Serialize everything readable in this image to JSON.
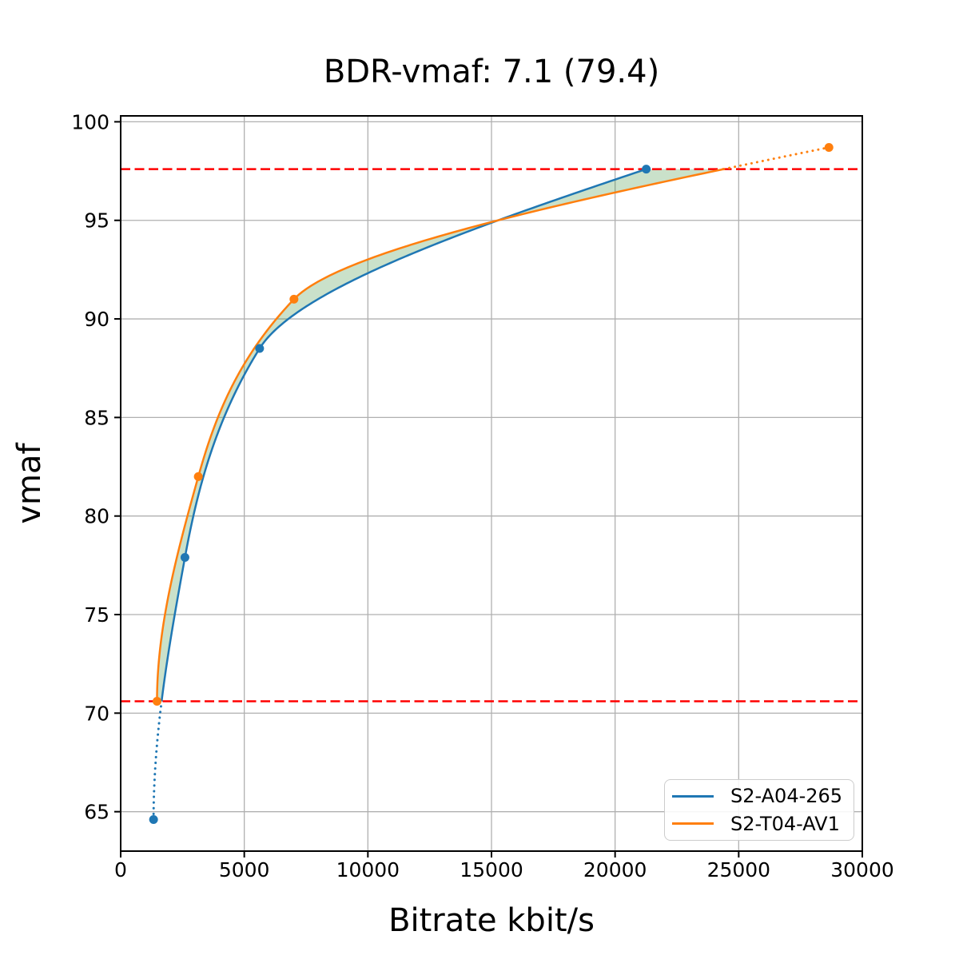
{
  "chart_data": {
    "type": "line",
    "title": "BDR-vmaf: 7.1 (79.4)",
    "bdr_value": "7.1",
    "bdr_value_secondary": "79.4",
    "xlabel": "Bitrate kbit/s",
    "ylabel": "vmaf",
    "xlim": [
      0,
      30000
    ],
    "ylim": [
      63.0,
      100.3
    ],
    "x_ticks": [
      0,
      5000,
      10000,
      15000,
      20000,
      25000,
      30000
    ],
    "y_ticks": [
      65,
      70,
      75,
      80,
      85,
      90,
      95,
      100
    ],
    "grid": true,
    "grid_color": "#b0b0b0",
    "legend_position": "lower right",
    "series": [
      {
        "name": "S2-A04-265",
        "color": "#1f77b4",
        "points": [
          [
            1330,
            64.6
          ],
          [
            2600,
            77.9
          ],
          [
            5620,
            88.5
          ],
          [
            21260,
            97.6
          ]
        ],
        "line_style": "solid inside BD band, dotted outside band"
      },
      {
        "name": "S2-T04-AV1",
        "color": "#ff7f0e",
        "points": [
          [
            1470,
            70.6
          ],
          [
            3140,
            82.0
          ],
          [
            7010,
            91.0
          ],
          [
            28650,
            98.7
          ]
        ],
        "line_style": "solid inside BD band, dotted outside band"
      }
    ],
    "reference_lines": {
      "lower": 70.6,
      "upper": 97.6,
      "color": "#ff0000",
      "style": "dashed",
      "orientation": "horizontal"
    },
    "shaded_region": {
      "color": "#3a913a",
      "alpha": 0.27,
      "description": "area between the two rate-quality curves for vmaf between 70.6 and 97.6"
    }
  }
}
